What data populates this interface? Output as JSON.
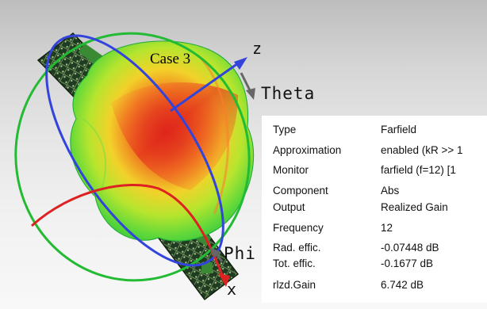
{
  "plot": {
    "case_label": "Case 3",
    "axis_z": "z",
    "axis_x": "x",
    "axis_theta": "Theta",
    "axis_phi": "Phi"
  },
  "info": {
    "rows": [
      {
        "key": "Type",
        "value": "Farfield"
      },
      {
        "key": "Approximation",
        "value": "enabled (kR >> 1"
      },
      {
        "key": "Monitor",
        "value": "farfield (f=12) [1"
      },
      {
        "key": "Component",
        "value": "Abs"
      },
      {
        "key": "Output",
        "value": "Realized Gain"
      },
      {
        "key": "Frequency",
        "value": "12"
      },
      {
        "key": "Rad. effic.",
        "value": "-0.07448 dB"
      },
      {
        "key": "Tot. effic.",
        "value": "-0.1677 dB"
      },
      {
        "key": "rlzd.Gain",
        "value": "6.742 dB"
      }
    ]
  },
  "colors": {
    "phi_circle": "#3344dd",
    "theta_circle": "#22bb33",
    "x_axis": "#dd2222",
    "pattern_hot": "#dd2a1a",
    "pattern_cold": "#22cc33"
  }
}
